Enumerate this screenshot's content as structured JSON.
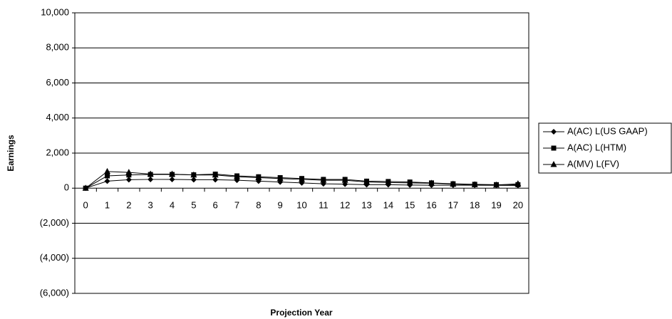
{
  "chart_data": {
    "type": "line",
    "x_label": "Projection Year",
    "y_label": "Earnings",
    "categories": [
      "0",
      "1",
      "2",
      "3",
      "4",
      "5",
      "6",
      "7",
      "8",
      "9",
      "10",
      "11",
      "12",
      "13",
      "14",
      "15",
      "16",
      "17",
      "18",
      "19",
      "20"
    ],
    "series": [
      {
        "name": "A(AC) L(US GAAP)",
        "color": "#000000",
        "marker": "diamond",
        "values": [
          0,
          400,
          480,
          500,
          500,
          480,
          480,
          450,
          400,
          350,
          300,
          250,
          230,
          200,
          200,
          180,
          170,
          170,
          170,
          160,
          150
        ]
      },
      {
        "name": "A(AC) L(HTM)",
        "color": "#000000",
        "marker": "square",
        "values": [
          0,
          700,
          750,
          780,
          780,
          760,
          800,
          700,
          650,
          600,
          550,
          500,
          500,
          400,
          380,
          350,
          300,
          250,
          220,
          200,
          200
        ]
      },
      {
        "name": "A(MV) L(FV)",
        "color": "#000000",
        "marker": "triangle",
        "values": [
          0,
          950,
          900,
          800,
          800,
          750,
          750,
          650,
          600,
          550,
          500,
          450,
          450,
          350,
          320,
          300,
          280,
          230,
          200,
          180,
          250
        ]
      }
    ],
    "ylim": [
      -6000,
      10000
    ],
    "yticks": [
      {
        "value": -6000,
        "label": "(6,000)"
      },
      {
        "value": -4000,
        "label": "(4,000)"
      },
      {
        "value": -2000,
        "label": "(2,000)"
      },
      0,
      {
        "value": 2000,
        "label": "2,000"
      },
      {
        "value": 4000,
        "label": "4,000"
      },
      {
        "value": 6000,
        "label": "6,000"
      },
      {
        "value": 8000,
        "label": "8,000"
      },
      {
        "value": 10000,
        "label": "10,000"
      }
    ],
    "grid": true,
    "legend": "right"
  }
}
